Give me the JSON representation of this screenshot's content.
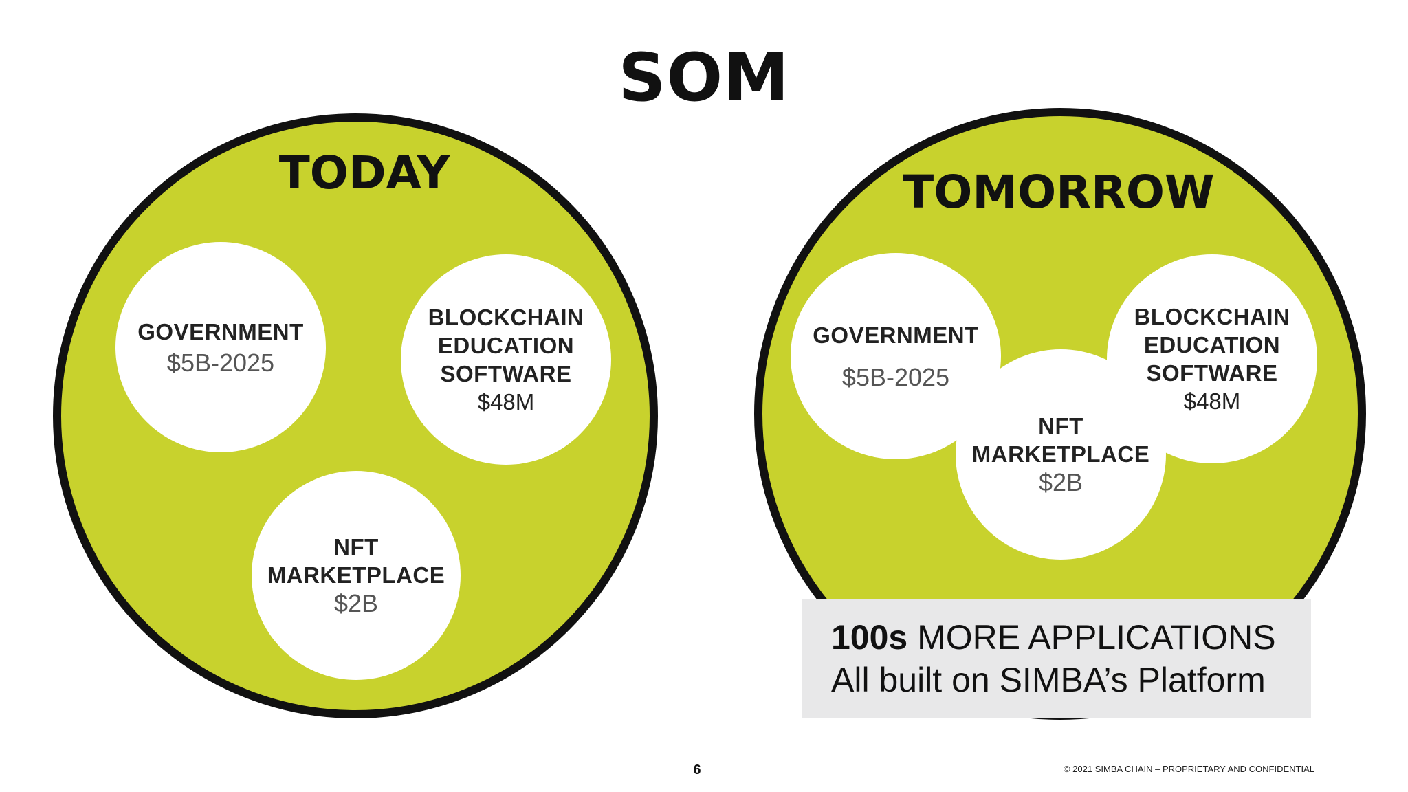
{
  "slide": {
    "title": "SOM",
    "page_number": "6",
    "copyright": "© 2021 SIMBA CHAIN – PROPRIETARY AND CONFIDENTIAL"
  },
  "today": {
    "heading": "TODAY",
    "government": {
      "label": "GOVERNMENT",
      "value": "$5B-2025"
    },
    "blockchain": {
      "label": "BLOCKCHAIN\nEDUCATION\nSOFTWARE",
      "value": "$48M"
    },
    "nft": {
      "label": "NFT\nMARKETPLACE",
      "value": "$2B"
    }
  },
  "tomorrow": {
    "heading": "TOMORROW",
    "government": {
      "label": "GOVERNMENT",
      "value": "$5B-2025"
    },
    "nft": {
      "label": "NFT\nMARKETPLACE",
      "value": "$2B"
    },
    "blockchain": {
      "label": "BLOCKCHAIN\nEDUCATION\nSOFTWARE",
      "value": "$48M"
    }
  },
  "applications_box": {
    "count_bold": "100s",
    "line1_rest": " MORE APPLICATIONS",
    "line2": "All built on SIMBA’s Platform"
  },
  "colors": {
    "circle_fill": "#c8d22d",
    "circle_border": "#111111",
    "box_fill": "#e8e8e9"
  }
}
